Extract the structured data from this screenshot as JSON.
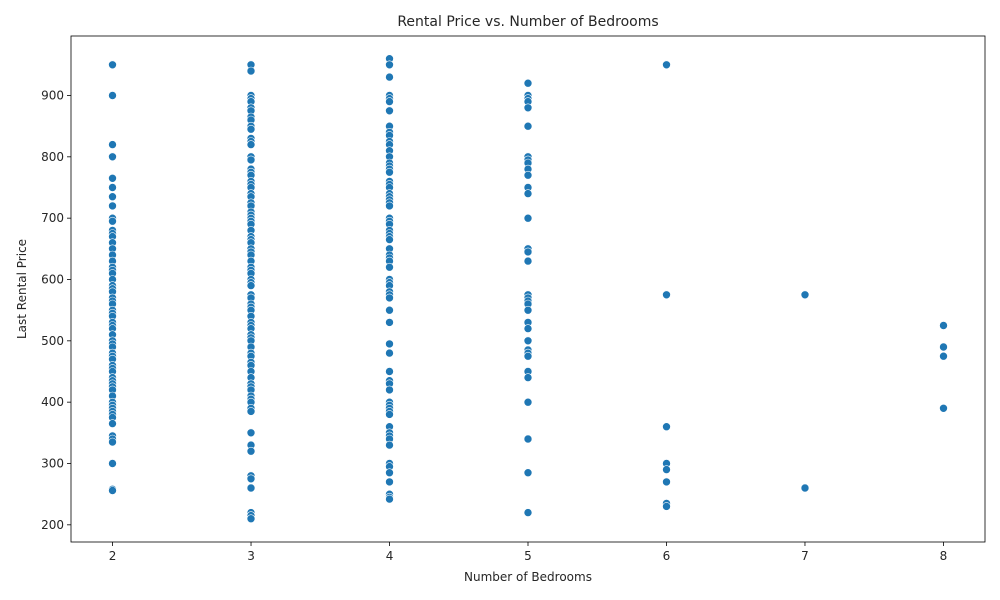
{
  "chart_data": {
    "type": "scatter",
    "title": "Rental Price vs. Number of Bedrooms",
    "xlabel": "Number of Bedrooms",
    "ylabel": "Last Rental Price",
    "xlim": [
      1.7,
      8.3
    ],
    "ylim": [
      172,
      997
    ],
    "xticks": [
      2,
      3,
      4,
      5,
      6,
      7,
      8
    ],
    "yticks": [
      200,
      300,
      400,
      500,
      600,
      700,
      800,
      900
    ],
    "grid": false,
    "legend": "none",
    "marker_color": "#1f77b4",
    "points": [
      [
        2,
        950
      ],
      [
        2,
        900
      ],
      [
        2,
        820
      ],
      [
        2,
        800
      ],
      [
        2,
        765
      ],
      [
        2,
        750
      ],
      [
        2,
        735
      ],
      [
        2,
        720
      ],
      [
        2,
        700
      ],
      [
        2,
        695
      ],
      [
        2,
        680
      ],
      [
        2,
        675
      ],
      [
        2,
        670
      ],
      [
        2,
        660
      ],
      [
        2,
        650
      ],
      [
        2,
        640
      ],
      [
        2,
        630
      ],
      [
        2,
        620
      ],
      [
        2,
        615
      ],
      [
        2,
        610
      ],
      [
        2,
        600
      ],
      [
        2,
        590
      ],
      [
        2,
        585
      ],
      [
        2,
        580
      ],
      [
        2,
        570
      ],
      [
        2,
        565
      ],
      [
        2,
        560
      ],
      [
        2,
        550
      ],
      [
        2,
        545
      ],
      [
        2,
        540
      ],
      [
        2,
        530
      ],
      [
        2,
        525
      ],
      [
        2,
        520
      ],
      [
        2,
        510
      ],
      [
        2,
        500
      ],
      [
        2,
        495
      ],
      [
        2,
        490
      ],
      [
        2,
        480
      ],
      [
        2,
        475
      ],
      [
        2,
        470
      ],
      [
        2,
        460
      ],
      [
        2,
        455
      ],
      [
        2,
        450
      ],
      [
        2,
        440
      ],
      [
        2,
        435
      ],
      [
        2,
        430
      ],
      [
        2,
        425
      ],
      [
        2,
        420
      ],
      [
        2,
        410
      ],
      [
        2,
        400
      ],
      [
        2,
        395
      ],
      [
        2,
        390
      ],
      [
        2,
        385
      ],
      [
        2,
        380
      ],
      [
        2,
        375
      ],
      [
        2,
        365
      ],
      [
        2,
        345
      ],
      [
        2,
        340
      ],
      [
        2,
        335
      ],
      [
        2,
        300
      ],
      [
        2,
        258
      ],
      [
        2,
        256
      ],
      [
        3,
        950
      ],
      [
        3,
        940
      ],
      [
        3,
        900
      ],
      [
        3,
        895
      ],
      [
        3,
        890
      ],
      [
        3,
        880
      ],
      [
        3,
        875
      ],
      [
        3,
        865
      ],
      [
        3,
        860
      ],
      [
        3,
        850
      ],
      [
        3,
        845
      ],
      [
        3,
        830
      ],
      [
        3,
        825
      ],
      [
        3,
        820
      ],
      [
        3,
        800
      ],
      [
        3,
        795
      ],
      [
        3,
        780
      ],
      [
        3,
        775
      ],
      [
        3,
        770
      ],
      [
        3,
        760
      ],
      [
        3,
        755
      ],
      [
        3,
        750
      ],
      [
        3,
        740
      ],
      [
        3,
        735
      ],
      [
        3,
        725
      ],
      [
        3,
        720
      ],
      [
        3,
        710
      ],
      [
        3,
        705
      ],
      [
        3,
        700
      ],
      [
        3,
        695
      ],
      [
        3,
        690
      ],
      [
        3,
        680
      ],
      [
        3,
        670
      ],
      [
        3,
        665
      ],
      [
        3,
        660
      ],
      [
        3,
        650
      ],
      [
        3,
        645
      ],
      [
        3,
        640
      ],
      [
        3,
        630
      ],
      [
        3,
        620
      ],
      [
        3,
        615
      ],
      [
        3,
        610
      ],
      [
        3,
        600
      ],
      [
        3,
        595
      ],
      [
        3,
        590
      ],
      [
        3,
        575
      ],
      [
        3,
        570
      ],
      [
        3,
        560
      ],
      [
        3,
        555
      ],
      [
        3,
        550
      ],
      [
        3,
        540
      ],
      [
        3,
        530
      ],
      [
        3,
        525
      ],
      [
        3,
        520
      ],
      [
        3,
        510
      ],
      [
        3,
        505
      ],
      [
        3,
        500
      ],
      [
        3,
        490
      ],
      [
        3,
        480
      ],
      [
        3,
        475
      ],
      [
        3,
        465
      ],
      [
        3,
        460
      ],
      [
        3,
        450
      ],
      [
        3,
        440
      ],
      [
        3,
        430
      ],
      [
        3,
        425
      ],
      [
        3,
        420
      ],
      [
        3,
        410
      ],
      [
        3,
        405
      ],
      [
        3,
        400
      ],
      [
        3,
        390
      ],
      [
        3,
        385
      ],
      [
        3,
        350
      ],
      [
        3,
        330
      ],
      [
        3,
        320
      ],
      [
        3,
        280
      ],
      [
        3,
        275
      ],
      [
        3,
        260
      ],
      [
        3,
        220
      ],
      [
        3,
        215
      ],
      [
        3,
        210
      ],
      [
        4,
        960
      ],
      [
        4,
        950
      ],
      [
        4,
        930
      ],
      [
        4,
        900
      ],
      [
        4,
        895
      ],
      [
        4,
        890
      ],
      [
        4,
        875
      ],
      [
        4,
        850
      ],
      [
        4,
        840
      ],
      [
        4,
        835
      ],
      [
        4,
        825
      ],
      [
        4,
        820
      ],
      [
        4,
        810
      ],
      [
        4,
        800
      ],
      [
        4,
        790
      ],
      [
        4,
        785
      ],
      [
        4,
        780
      ],
      [
        4,
        775
      ],
      [
        4,
        760
      ],
      [
        4,
        755
      ],
      [
        4,
        750
      ],
      [
        4,
        740
      ],
      [
        4,
        735
      ],
      [
        4,
        730
      ],
      [
        4,
        725
      ],
      [
        4,
        720
      ],
      [
        4,
        700
      ],
      [
        4,
        695
      ],
      [
        4,
        690
      ],
      [
        4,
        680
      ],
      [
        4,
        675
      ],
      [
        4,
        670
      ],
      [
        4,
        665
      ],
      [
        4,
        650
      ],
      [
        4,
        640
      ],
      [
        4,
        635
      ],
      [
        4,
        630
      ],
      [
        4,
        620
      ],
      [
        4,
        600
      ],
      [
        4,
        595
      ],
      [
        4,
        590
      ],
      [
        4,
        580
      ],
      [
        4,
        575
      ],
      [
        4,
        570
      ],
      [
        4,
        550
      ],
      [
        4,
        530
      ],
      [
        4,
        495
      ],
      [
        4,
        480
      ],
      [
        4,
        450
      ],
      [
        4,
        435
      ],
      [
        4,
        430
      ],
      [
        4,
        420
      ],
      [
        4,
        400
      ],
      [
        4,
        395
      ],
      [
        4,
        390
      ],
      [
        4,
        385
      ],
      [
        4,
        380
      ],
      [
        4,
        360
      ],
      [
        4,
        350
      ],
      [
        4,
        345
      ],
      [
        4,
        340
      ],
      [
        4,
        330
      ],
      [
        4,
        300
      ],
      [
        4,
        295
      ],
      [
        4,
        285
      ],
      [
        4,
        270
      ],
      [
        4,
        250
      ],
      [
        4,
        245
      ],
      [
        4,
        242
      ],
      [
        5,
        920
      ],
      [
        5,
        900
      ],
      [
        5,
        895
      ],
      [
        5,
        890
      ],
      [
        5,
        880
      ],
      [
        5,
        850
      ],
      [
        5,
        800
      ],
      [
        5,
        795
      ],
      [
        5,
        790
      ],
      [
        5,
        780
      ],
      [
        5,
        770
      ],
      [
        5,
        750
      ],
      [
        5,
        740
      ],
      [
        5,
        700
      ],
      [
        5,
        650
      ],
      [
        5,
        645
      ],
      [
        5,
        630
      ],
      [
        5,
        575
      ],
      [
        5,
        570
      ],
      [
        5,
        565
      ],
      [
        5,
        560
      ],
      [
        5,
        550
      ],
      [
        5,
        530
      ],
      [
        5,
        520
      ],
      [
        5,
        500
      ],
      [
        5,
        485
      ],
      [
        5,
        480
      ],
      [
        5,
        475
      ],
      [
        5,
        450
      ],
      [
        5,
        440
      ],
      [
        5,
        400
      ],
      [
        5,
        340
      ],
      [
        5,
        285
      ],
      [
        5,
        220
      ],
      [
        6,
        950
      ],
      [
        6,
        575
      ],
      [
        6,
        360
      ],
      [
        6,
        300
      ],
      [
        6,
        290
      ],
      [
        6,
        270
      ],
      [
        6,
        235
      ],
      [
        6,
        230
      ],
      [
        7,
        575
      ],
      [
        7,
        260
      ],
      [
        8,
        525
      ],
      [
        8,
        490
      ],
      [
        8,
        475
      ],
      [
        8,
        390
      ]
    ]
  }
}
